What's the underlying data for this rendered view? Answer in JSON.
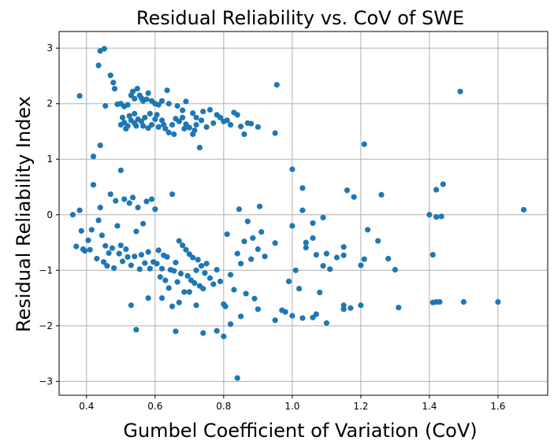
{
  "chart_data": {
    "type": "scatter",
    "title": "Residual Reliability vs. CoV of SWE",
    "xlabel": "Gumbel Coefficient of Variation (CoV)",
    "ylabel": "Residual Reliability Index",
    "xlim": [
      0.32,
      1.745
    ],
    "ylim": [
      -3.25,
      3.3
    ],
    "xticks": [
      0.4,
      0.6,
      0.8,
      1.0,
      1.2,
      1.4,
      1.6
    ],
    "xtick_labels": [
      "0.4",
      "0.6",
      "0.8",
      "1.0",
      "1.2",
      "1.4",
      "1.6"
    ],
    "yticks": [
      -3,
      -2,
      -1,
      0,
      1,
      2,
      3
    ],
    "ytick_labels": [
      "−3",
      "−2",
      "−1",
      "0",
      "1",
      "2",
      "3"
    ],
    "grid": true,
    "marker_color": "#1f77b4",
    "points": [
      [
        0.38,
        2.14
      ],
      [
        0.435,
        2.69
      ],
      [
        0.44,
        2.95
      ],
      [
        0.452,
        2.99
      ],
      [
        0.47,
        2.51
      ],
      [
        0.478,
        2.38
      ],
      [
        0.482,
        2.27
      ],
      [
        0.455,
        1.96
      ],
      [
        0.49,
        1.99
      ],
      [
        0.5,
        2.0
      ],
      [
        0.51,
        1.95
      ],
      [
        0.52,
        1.98
      ],
      [
        0.53,
        2.15
      ],
      [
        0.535,
        2.22
      ],
      [
        0.54,
        2.09
      ],
      [
        0.548,
        2.27
      ],
      [
        0.555,
        2.15
      ],
      [
        0.56,
        2.1
      ],
      [
        0.565,
        2.05
      ],
      [
        0.575,
        2.08
      ],
      [
        0.58,
        2.19
      ],
      [
        0.59,
        2.05
      ],
      [
        0.6,
        2.0
      ],
      [
        0.61,
        1.98
      ],
      [
        0.62,
        2.05
      ],
      [
        0.635,
        2.24
      ],
      [
        0.64,
        2.0
      ],
      [
        0.665,
        1.96
      ],
      [
        0.68,
        1.88
      ],
      [
        0.69,
        2.04
      ],
      [
        0.71,
        1.83
      ],
      [
        0.72,
        1.75
      ],
      [
        0.74,
        1.86
      ],
      [
        0.76,
        1.89
      ],
      [
        0.78,
        1.8
      ],
      [
        0.79,
        1.75
      ],
      [
        0.8,
        1.68
      ],
      [
        0.81,
        1.7
      ],
      [
        0.82,
        1.62
      ],
      [
        0.83,
        1.84
      ],
      [
        0.84,
        1.8
      ],
      [
        0.85,
        1.59
      ],
      [
        0.86,
        1.45
      ],
      [
        0.87,
        1.65
      ],
      [
        0.88,
        1.64
      ],
      [
        0.9,
        1.58
      ],
      [
        0.95,
        1.47
      ],
      [
        0.955,
        2.34
      ],
      [
        0.5,
        1.62
      ],
      [
        0.51,
        1.66
      ],
      [
        0.52,
        1.6
      ],
      [
        0.53,
        1.7
      ],
      [
        0.54,
        1.65
      ],
      [
        0.55,
        1.72
      ],
      [
        0.56,
        1.68
      ],
      [
        0.57,
        1.75
      ],
      [
        0.58,
        1.56
      ],
      [
        0.59,
        1.62
      ],
      [
        0.6,
        1.72
      ],
      [
        0.61,
        1.58
      ],
      [
        0.62,
        1.7
      ],
      [
        0.63,
        1.55
      ],
      [
        0.64,
        1.48
      ],
      [
        0.65,
        1.62
      ],
      [
        0.66,
        1.73
      ],
      [
        0.67,
        1.68
      ],
      [
        0.68,
        1.75
      ],
      [
        0.69,
        1.63
      ],
      [
        0.7,
        1.57
      ],
      [
        0.71,
        1.45
      ],
      [
        0.72,
        1.62
      ],
      [
        0.73,
        1.21
      ],
      [
        0.735,
        1.7
      ],
      [
        0.75,
        1.58
      ],
      [
        0.77,
        1.65
      ],
      [
        0.505,
        1.75
      ],
      [
        0.515,
        1.55
      ],
      [
        0.525,
        1.78
      ],
      [
        0.545,
        1.6
      ],
      [
        0.515,
        1.55
      ],
      [
        0.54,
        1.82
      ],
      [
        0.565,
        1.6
      ],
      [
        0.585,
        1.82
      ],
      [
        0.605,
        1.8
      ],
      [
        0.625,
        1.62
      ],
      [
        0.655,
        1.45
      ],
      [
        0.685,
        1.55
      ],
      [
        0.715,
        1.52
      ],
      [
        0.42,
        1.05
      ],
      [
        0.44,
        1.25
      ],
      [
        0.5,
        0.8
      ],
      [
        1.21,
        1.27
      ],
      [
        1.49,
        2.22
      ],
      [
        0.37,
        -0.57
      ],
      [
        0.38,
        0.08
      ],
      [
        0.385,
        -0.29
      ],
      [
        0.395,
        -0.65
      ],
      [
        0.405,
        -0.46
      ],
      [
        0.41,
        -0.63
      ],
      [
        0.415,
        -0.27
      ],
      [
        0.42,
        0.54
      ],
      [
        0.43,
        -0.79
      ],
      [
        0.435,
        -0.1
      ],
      [
        0.44,
        0.13
      ],
      [
        0.445,
        -0.37
      ],
      [
        0.45,
        -0.85
      ],
      [
        0.455,
        -0.56
      ],
      [
        0.46,
        -0.92
      ],
      [
        0.465,
        -0.69
      ],
      [
        0.47,
        0.37
      ],
      [
        0.475,
        -0.6
      ],
      [
        0.48,
        -0.96
      ],
      [
        0.485,
        0.25
      ],
      [
        0.49,
        -0.2
      ],
      [
        0.495,
        -0.7
      ],
      [
        0.5,
        -0.55
      ],
      [
        0.505,
        -0.84
      ],
      [
        0.51,
        0.28
      ],
      [
        0.515,
        -0.62
      ],
      [
        0.52,
        -0.76
      ],
      [
        0.525,
        0.21
      ],
      [
        0.53,
        -0.91
      ],
      [
        0.535,
        0.31
      ],
      [
        0.54,
        -0.75
      ],
      [
        0.545,
        -0.3
      ],
      [
        0.55,
        0.13
      ],
      [
        0.555,
        -0.98
      ],
      [
        0.56,
        -0.72
      ],
      [
        0.565,
        -0.16
      ],
      [
        0.57,
        -0.87
      ],
      [
        0.575,
        0.24
      ],
      [
        0.58,
        -0.67
      ],
      [
        0.585,
        -0.97
      ],
      [
        0.59,
        0.28
      ],
      [
        0.595,
        -0.85
      ],
      [
        0.6,
        0.1
      ],
      [
        0.605,
        -0.88
      ],
      [
        0.61,
        -0.64
      ],
      [
        0.615,
        -1.12
      ],
      [
        0.62,
        -0.97
      ],
      [
        0.625,
        -0.73
      ],
      [
        0.63,
        -1.18
      ],
      [
        0.635,
        -0.76
      ],
      [
        0.64,
        -1.32
      ],
      [
        0.645,
        -0.99
      ],
      [
        0.65,
        0.37
      ],
      [
        0.655,
        -1.01
      ],
      [
        0.66,
        -0.86
      ],
      [
        0.665,
        -1.21
      ],
      [
        0.67,
        -0.47
      ],
      [
        0.675,
        -1.06
      ],
      [
        0.68,
        -0.55
      ],
      [
        0.685,
        -1.39
      ],
      [
        0.69,
        -0.63
      ],
      [
        0.695,
        -1.1
      ],
      [
        0.7,
        -0.71
      ],
      [
        0.705,
        -1.18
      ],
      [
        0.71,
        -0.77
      ],
      [
        0.715,
        -1.23
      ],
      [
        0.72,
        -1.0
      ],
      [
        0.725,
        -0.81
      ],
      [
        0.73,
        -1.28
      ],
      [
        0.735,
        -0.92
      ],
      [
        0.74,
        -1.33
      ],
      [
        0.745,
        -1.05
      ],
      [
        0.75,
        -0.88
      ],
      [
        0.76,
        -1.14
      ],
      [
        0.77,
        -1.25
      ],
      [
        0.78,
        -0.99
      ],
      [
        0.79,
        -1.2
      ],
      [
        0.8,
        -1.61
      ],
      [
        0.805,
        -1.65
      ],
      [
        0.81,
        -0.35
      ],
      [
        0.82,
        -1.08
      ],
      [
        0.83,
        -1.35
      ],
      [
        0.84,
        -0.7
      ],
      [
        0.845,
        0.1
      ],
      [
        0.85,
        -0.88
      ],
      [
        0.86,
        -0.48
      ],
      [
        0.865,
        -1.42
      ],
      [
        0.87,
        -0.12
      ],
      [
        0.88,
        -0.8
      ],
      [
        0.885,
        -0.42
      ],
      [
        0.89,
        -1.51
      ],
      [
        0.9,
        -0.62
      ],
      [
        0.905,
        0.15
      ],
      [
        0.91,
        -0.31
      ],
      [
        0.92,
        -0.75
      ],
      [
        0.95,
        -0.51
      ],
      [
        0.53,
        -1.63
      ],
      [
        0.545,
        -2.07
      ],
      [
        0.58,
        -1.5
      ],
      [
        0.62,
        -1.5
      ],
      [
        0.65,
        -1.65
      ],
      [
        0.66,
        -2.1
      ],
      [
        0.67,
        -1.58
      ],
      [
        0.7,
        -1.39
      ],
      [
        0.72,
        -1.63
      ],
      [
        0.74,
        -2.13
      ],
      [
        0.78,
        -2.09
      ],
      [
        0.8,
        -2.19
      ],
      [
        0.82,
        -1.97
      ],
      [
        0.84,
        -2.94
      ],
      [
        0.85,
        -1.83
      ],
      [
        0.9,
        -1.7
      ],
      [
        0.95,
        -1.9
      ],
      [
        0.98,
        -1.75
      ],
      [
        0.99,
        -1.2
      ],
      [
        1.0,
        -0.2
      ],
      [
        1.0,
        0.82
      ],
      [
        1.01,
        -1.0
      ],
      [
        1.02,
        -1.33
      ],
      [
        1.03,
        0.48
      ],
      [
        1.03,
        0.08
      ],
      [
        1.04,
        -0.59
      ],
      [
        1.06,
        -0.42
      ],
      [
        1.06,
        -0.15
      ],
      [
        1.07,
        -0.72
      ],
      [
        1.08,
        -1.4
      ],
      [
        1.09,
        -0.92
      ],
      [
        1.09,
        -0.05
      ],
      [
        1.1,
        -0.7
      ],
      [
        1.11,
        -0.98
      ],
      [
        1.13,
        -0.77
      ],
      [
        1.15,
        -0.58
      ],
      [
        1.15,
        -0.73
      ],
      [
        1.16,
        0.44
      ],
      [
        1.18,
        0.32
      ],
      [
        1.2,
        -0.91
      ],
      [
        1.21,
        -0.8
      ],
      [
        1.22,
        -0.27
      ],
      [
        1.25,
        -0.47
      ],
      [
        1.26,
        0.36
      ],
      [
        1.28,
        -0.79
      ],
      [
        1.3,
        -0.99
      ],
      [
        1.1,
        -1.95
      ],
      [
        1.15,
        -1.63
      ],
      [
        1.15,
        -1.7
      ],
      [
        1.17,
        -1.68
      ],
      [
        1.2,
        -1.63
      ],
      [
        1.07,
        -1.79
      ],
      [
        1.06,
        -1.85
      ],
      [
        1.03,
        -1.86
      ],
      [
        1.0,
        -1.82
      ],
      [
        0.97,
        -1.72
      ],
      [
        1.31,
        -1.67
      ],
      [
        1.4,
        0.0
      ],
      [
        1.41,
        -0.72
      ],
      [
        1.41,
        -1.58
      ],
      [
        1.42,
        -1.57
      ],
      [
        1.43,
        -1.57
      ],
      [
        1.42,
        0.45
      ],
      [
        1.42,
        -0.04
      ],
      [
        1.435,
        -0.03
      ],
      [
        1.44,
        0.55
      ],
      [
        1.5,
        -1.57
      ],
      [
        1.6,
        -1.57
      ],
      [
        1.675,
        0.09
      ],
      [
        0.39,
        -0.62
      ],
      [
        0.36,
        0.0
      ],
      [
        1.04,
        -0.5
      ]
    ]
  }
}
